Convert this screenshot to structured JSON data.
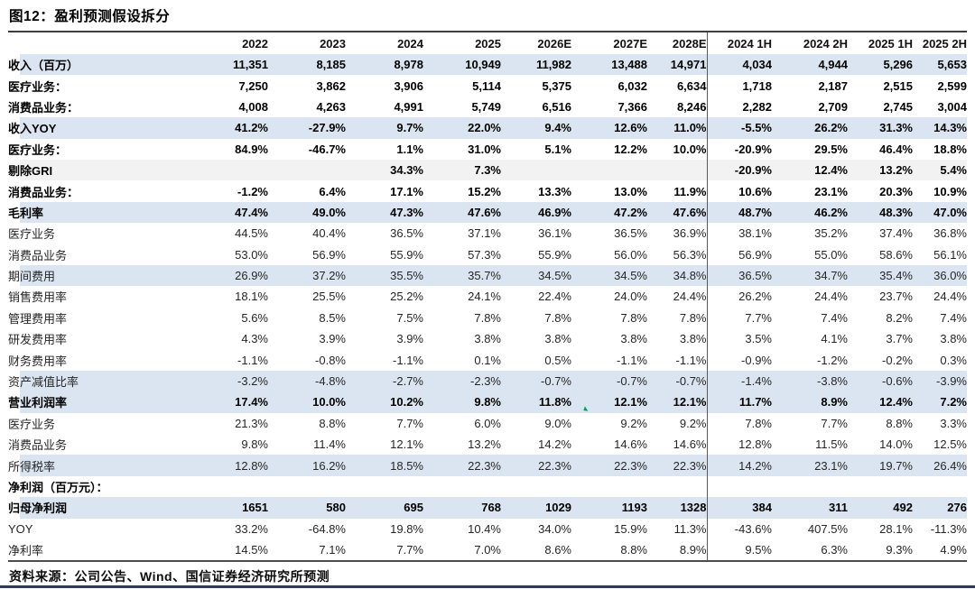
{
  "title": "图12：盈利预测假设拆分",
  "source": "资料来源：公司公告、Wind、国信证券经济研究所预测",
  "colors": {
    "row_shade_blue": "#dbe5f1",
    "row_shade_gray": "#f2f2f2",
    "divider_line": "#595959",
    "table_rule": "#3d3d3d",
    "page_bottom_rule": "#2b3a55",
    "comment_marker_green": "#00a54f"
  },
  "table": {
    "columns": [
      "2022",
      "2023",
      "2024",
      "2025",
      "2026E",
      "2027E",
      "2028E",
      "2024 1H",
      "2024 2H",
      "2025 1H",
      "2025 2H"
    ],
    "comment_marker": {
      "row_index": 16,
      "col_index": 5
    },
    "rows": [
      {
        "label": "收入（百万）",
        "bold": true,
        "shade": "blue",
        "values": [
          "11,351",
          "8,185",
          "8,978",
          "10,949",
          "11,982",
          "13,488",
          "14,971",
          "4,034",
          "4,944",
          "5,296",
          "5,653"
        ]
      },
      {
        "label": "医疗业务：",
        "bold": true,
        "shade": "none",
        "values": [
          "7,250",
          "3,862",
          "3,906",
          "5,114",
          "5,375",
          "6,032",
          "6,634",
          "1,718",
          "2,187",
          "2,515",
          "2,599"
        ]
      },
      {
        "label": "消费品业务：",
        "bold": true,
        "shade": "none",
        "values": [
          "4,008",
          "4,263",
          "4,991",
          "5,749",
          "6,516",
          "7,366",
          "8,246",
          "2,282",
          "2,709",
          "2,745",
          "3,004"
        ]
      },
      {
        "label": "收入YOY",
        "bold": true,
        "shade": "blue",
        "values": [
          "41.2%",
          "-27.9%",
          "9.7%",
          "22.0%",
          "9.4%",
          "12.6%",
          "11.0%",
          "-5.5%",
          "26.2%",
          "31.3%",
          "14.3%"
        ]
      },
      {
        "label": "医疗业务：",
        "bold": true,
        "shade": "none",
        "values": [
          "84.9%",
          "-46.7%",
          "1.1%",
          "31.0%",
          "5.1%",
          "12.2%",
          "10.0%",
          "-20.9%",
          "29.5%",
          "46.4%",
          "18.8%"
        ]
      },
      {
        "label": "剔除GRI",
        "bold": true,
        "shade": "gray",
        "values": [
          "",
          "",
          "34.3%",
          "7.3%",
          "",
          "",
          "",
          "-20.9%",
          "12.4%",
          "13.2%",
          "5.4%"
        ]
      },
      {
        "label": "消费品业务：",
        "bold": true,
        "shade": "none",
        "values": [
          "-1.2%",
          "6.4%",
          "17.1%",
          "15.2%",
          "13.3%",
          "13.0%",
          "11.9%",
          "10.6%",
          "23.1%",
          "20.3%",
          "10.9%"
        ]
      },
      {
        "label": "毛利率",
        "bold": true,
        "shade": "blue",
        "values": [
          "47.4%",
          "49.0%",
          "47.3%",
          "47.6%",
          "46.9%",
          "47.2%",
          "47.6%",
          "48.7%",
          "46.2%",
          "48.3%",
          "47.0%"
        ]
      },
      {
        "label": "医疗业务",
        "bold": false,
        "shade": "none",
        "values": [
          "44.5%",
          "40.4%",
          "36.5%",
          "37.1%",
          "36.1%",
          "36.5%",
          "36.9%",
          "38.1%",
          "35.2%",
          "37.4%",
          "36.8%"
        ]
      },
      {
        "label": "消费品业务",
        "bold": false,
        "shade": "none",
        "values": [
          "53.0%",
          "56.9%",
          "55.9%",
          "57.3%",
          "55.9%",
          "56.0%",
          "56.3%",
          "56.9%",
          "55.0%",
          "58.6%",
          "56.1%"
        ]
      },
      {
        "label": "期间费用",
        "bold": false,
        "shade": "blue",
        "values": [
          "26.9%",
          "37.2%",
          "35.5%",
          "35.7%",
          "34.5%",
          "34.5%",
          "34.8%",
          "36.5%",
          "34.7%",
          "35.4%",
          "36.0%"
        ]
      },
      {
        "label": "销售费用率",
        "bold": false,
        "shade": "none",
        "values": [
          "18.1%",
          "25.5%",
          "25.2%",
          "24.1%",
          "22.4%",
          "24.0%",
          "24.4%",
          "26.2%",
          "24.4%",
          "23.7%",
          "24.4%"
        ]
      },
      {
        "label": "管理费用率",
        "bold": false,
        "shade": "none",
        "values": [
          "5.6%",
          "8.5%",
          "7.5%",
          "7.8%",
          "7.8%",
          "7.8%",
          "7.8%",
          "7.7%",
          "7.4%",
          "8.2%",
          "7.4%"
        ]
      },
      {
        "label": "研发费用率",
        "bold": false,
        "shade": "none",
        "values": [
          "4.3%",
          "3.9%",
          "3.9%",
          "3.8%",
          "3.8%",
          "3.8%",
          "3.8%",
          "3.5%",
          "4.1%",
          "3.7%",
          "3.8%"
        ]
      },
      {
        "label": "财务费用率",
        "bold": false,
        "shade": "none",
        "values": [
          "-1.1%",
          "-0.8%",
          "-1.1%",
          "0.1%",
          "0.5%",
          "-1.1%",
          "-1.1%",
          "-0.9%",
          "-1.2%",
          "-0.2%",
          "0.3%"
        ]
      },
      {
        "label": "资产减值比率",
        "bold": false,
        "shade": "blue",
        "values": [
          "-3.2%",
          "-4.8%",
          "-2.7%",
          "-2.3%",
          "-0.7%",
          "-0.7%",
          "-0.7%",
          "-1.4%",
          "-3.8%",
          "-0.6%",
          "-3.9%"
        ]
      },
      {
        "label": "营业利润率",
        "bold": true,
        "shade": "blue",
        "values": [
          "17.4%",
          "10.0%",
          "10.2%",
          "9.8%",
          "11.8%",
          "12.1%",
          "12.1%",
          "11.7%",
          "8.9%",
          "12.4%",
          "7.2%"
        ]
      },
      {
        "label": "医疗业务",
        "bold": false,
        "shade": "none",
        "values": [
          "21.3%",
          "8.8%",
          "7.7%",
          "6.0%",
          "9.0%",
          "9.2%",
          "9.2%",
          "7.8%",
          "7.7%",
          "8.8%",
          "3.3%"
        ]
      },
      {
        "label": "消费品业务",
        "bold": false,
        "shade": "none",
        "values": [
          "9.8%",
          "11.4%",
          "12.1%",
          "13.2%",
          "14.2%",
          "14.6%",
          "14.6%",
          "12.8%",
          "11.5%",
          "14.0%",
          "12.5%"
        ]
      },
      {
        "label": "所得税率",
        "bold": false,
        "shade": "blue",
        "values": [
          "12.8%",
          "16.2%",
          "18.5%",
          "22.3%",
          "22.3%",
          "22.3%",
          "22.3%",
          "14.2%",
          "23.1%",
          "19.7%",
          "26.4%"
        ]
      },
      {
        "label": "净利润（百万元）：",
        "bold": true,
        "shade": "none",
        "values": [
          "",
          "",
          "",
          "",
          "",
          "",
          "",
          "",
          "",
          "",
          ""
        ]
      },
      {
        "label": "归母净利润",
        "bold": true,
        "shade": "blue",
        "values": [
          "1651",
          "580",
          "695",
          "768",
          "1029",
          "1193",
          "1328",
          "384",
          "311",
          "492",
          "276"
        ]
      },
      {
        "label": "YOY",
        "bold": false,
        "shade": "none",
        "values": [
          "33.2%",
          "-64.8%",
          "19.8%",
          "10.4%",
          "34.0%",
          "15.9%",
          "11.3%",
          "-43.6%",
          "407.5%",
          "28.1%",
          "-11.3%"
        ]
      },
      {
        "label": "净利率",
        "bold": false,
        "shade": "none",
        "values": [
          "14.5%",
          "7.1%",
          "7.7%",
          "7.0%",
          "8.6%",
          "8.8%",
          "8.9%",
          "9.5%",
          "6.3%",
          "9.3%",
          "4.9%"
        ]
      }
    ]
  }
}
